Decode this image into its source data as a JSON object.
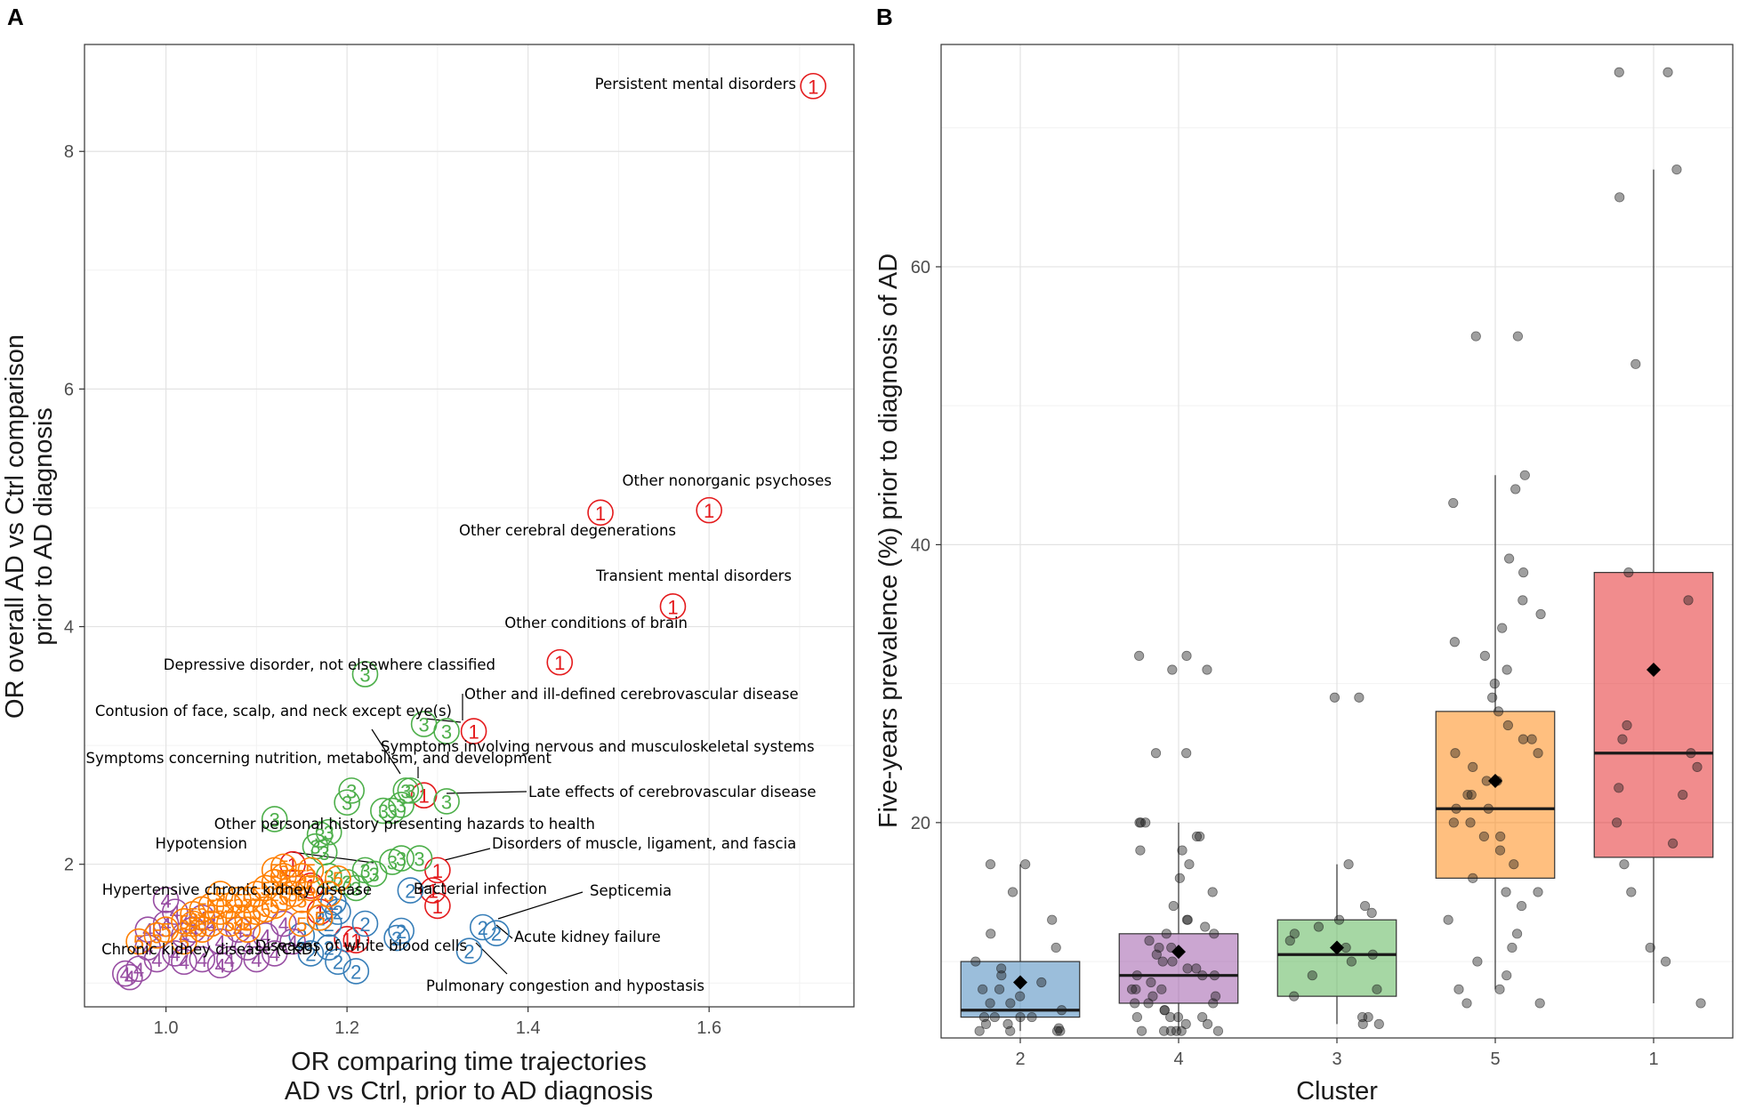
{
  "colors": {
    "1": "#e41a1c",
    "2": "#377eb8",
    "3": "#4daf4a",
    "4": "#984ea3",
    "5": "#ff7f00"
  },
  "panelA": {
    "label": "A",
    "xlabel": [
      "OR comparing time trajectories",
      "AD vs Ctrl, prior to AD diagnosis"
    ],
    "ylabel": [
      "OR overall AD vs Ctrl comparison",
      "prior to AD diagnosis"
    ],
    "xlim": [
      0.91,
      1.76
    ],
    "ylim": [
      0.8,
      8.9
    ],
    "xticks": [
      1.0,
      1.2,
      1.4,
      1.6
    ],
    "xtick_labels": [
      "1.0",
      "1.2",
      "1.4",
      "1.6"
    ],
    "yticks": [
      2,
      4,
      6,
      8
    ],
    "ytick_labels": [
      "2",
      "4",
      "6",
      "8"
    ]
  },
  "panelB": {
    "label": "B",
    "xlabel": "Cluster",
    "ylabel": "Five-years prevalence (%) prior to diagnosis of AD",
    "ylim": [
      4.5,
      76
    ],
    "yticks": [
      20,
      40,
      60
    ],
    "ytick_labels": [
      "20",
      "40",
      "60"
    ]
  },
  "chart_data": [
    {
      "type": "scatter",
      "title": "",
      "xlabel": "OR comparing time trajectories AD vs Ctrl, prior to AD diagnosis",
      "ylabel": "OR overall AD vs Ctrl comparison prior to AD diagnosis",
      "labeled_points": [
        {
          "name": "Persistent mental disorders",
          "cluster": "1",
          "x": 1.715,
          "y": 8.55
        },
        {
          "name": "Other nonorganic psychoses",
          "cluster": "1",
          "x": 1.6,
          "y": 4.98
        },
        {
          "name": "Other cerebral degenerations",
          "cluster": "1",
          "x": 1.48,
          "y": 4.96
        },
        {
          "name": "Transient mental disorders",
          "cluster": "1",
          "x": 1.56,
          "y": 4.17
        },
        {
          "name": "Other conditions of brain",
          "cluster": "1",
          "x": 1.435,
          "y": 3.7
        },
        {
          "name": "Depressive disorder, not elsewhere classified",
          "cluster": "3",
          "x": 1.22,
          "y": 3.6
        },
        {
          "name": "Other and ill-defined cerebrovascular disease",
          "cluster": "1",
          "x": 1.34,
          "y": 3.12
        },
        {
          "name": "Contusion of face, scalp, and neck except eye(s)",
          "cluster": "3",
          "x": 1.29,
          "y": 3.1
        },
        {
          "name": "Symptoms involving nervous and musculoskeletal systems",
          "cluster": "3",
          "x": 1.265,
          "y": 2.62
        },
        {
          "name": "Symptoms concerning nutrition, metabolism, and development",
          "cluster": "1",
          "x": 1.285,
          "y": 2.58
        },
        {
          "name": "Late effects of cerebrovascular disease",
          "cluster": "3",
          "x": 1.31,
          "y": 2.53
        },
        {
          "name": "Other personal history presenting hazards to health",
          "cluster": "3",
          "x": 1.215,
          "y": 1.95
        },
        {
          "name": "Hypotension",
          "cluster": "5",
          "x": 1.19,
          "y": 1.88
        },
        {
          "name": "Disorders of muscle, ligament, and fascia",
          "cluster": "1",
          "x": 1.3,
          "y": 1.95
        },
        {
          "name": "Bacterial infection",
          "cluster": "1",
          "x": 1.295,
          "y": 1.78
        },
        {
          "name": "Septicemia",
          "cluster": "2",
          "x": 1.365,
          "y": 1.42
        },
        {
          "name": "Hypertensive chronic kidney disease",
          "cluster": "5",
          "x": 1.15,
          "y": 1.5
        },
        {
          "name": "Acute kidney failure",
          "cluster": "2",
          "x": 1.36,
          "y": 1.35
        },
        {
          "name": "Diseases of white blood cells",
          "cluster": "2",
          "x": 1.19,
          "y": 1.18
        },
        {
          "name": "Chronic kidney disease (CKD)",
          "cluster": "4",
          "x": 0.97,
          "y": 1.12
        },
        {
          "name": "Pulmonary congestion and hypostasis",
          "cluster": "2",
          "x": 1.335,
          "y": 1.27
        }
      ],
      "series": [
        {
          "name": "1",
          "points": [
            [
              1.715,
              8.55
            ],
            [
              1.6,
              4.98
            ],
            [
              1.48,
              4.96
            ],
            [
              1.56,
              4.17
            ],
            [
              1.435,
              3.7
            ],
            [
              1.34,
              3.12
            ],
            [
              1.285,
              2.58
            ],
            [
              1.3,
              1.95
            ],
            [
              1.295,
              1.78
            ],
            [
              1.3,
              1.65
            ],
            [
              1.14,
              2.0
            ],
            [
              1.16,
              1.82
            ],
            [
              1.17,
              1.6
            ],
            [
              1.2,
              1.37
            ],
            [
              1.21,
              1.36
            ]
          ]
        },
        {
          "name": "2",
          "points": [
            [
              1.365,
              1.42
            ],
            [
              1.35,
              1.47
            ],
            [
              1.335,
              1.27
            ],
            [
              1.26,
              1.44
            ],
            [
              1.255,
              1.38
            ],
            [
              1.27,
              1.78
            ],
            [
              1.22,
              1.5
            ],
            [
              1.21,
              1.1
            ],
            [
              1.19,
              1.18
            ],
            [
              1.18,
              1.3
            ],
            [
              1.16,
              1.25
            ],
            [
              1.15,
              1.4
            ],
            [
              1.17,
              1.55
            ],
            [
              1.18,
              1.5
            ],
            [
              1.185,
              1.68
            ],
            [
              1.19,
              1.6
            ]
          ]
        },
        {
          "name": "3",
          "points": [
            [
              1.22,
              3.6
            ],
            [
              1.285,
              3.18
            ],
            [
              1.31,
              3.12
            ],
            [
              1.265,
              2.62
            ],
            [
              1.27,
              2.62
            ],
            [
              1.31,
              2.53
            ],
            [
              1.24,
              2.45
            ],
            [
              1.25,
              2.45
            ],
            [
              1.26,
              2.5
            ],
            [
              1.2,
              2.52
            ],
            [
              1.205,
              2.62
            ],
            [
              1.12,
              2.38
            ],
            [
              1.18,
              2.27
            ],
            [
              1.17,
              2.25
            ],
            [
              1.175,
              2.1
            ],
            [
              1.165,
              2.15
            ],
            [
              1.22,
              1.95
            ],
            [
              1.23,
              1.92
            ],
            [
              1.25,
              2.02
            ],
            [
              1.26,
              2.05
            ],
            [
              1.28,
              2.05
            ],
            [
              1.21,
              1.8
            ],
            [
              1.2,
              1.85
            ],
            [
              1.18,
              1.9
            ]
          ]
        },
        {
          "name": "4",
          "points": [
            [
              0.97,
              1.12
            ],
            [
              0.96,
              1.05
            ],
            [
              0.955,
              1.08
            ],
            [
              1.0,
              1.7
            ],
            [
              0.98,
              1.3
            ],
            [
              0.99,
              1.2
            ],
            [
              1.01,
              1.25
            ],
            [
              1.02,
              1.4
            ],
            [
              1.03,
              1.45
            ],
            [
              1.04,
              1.2
            ],
            [
              1.05,
              1.5
            ],
            [
              1.06,
              1.35
            ],
            [
              1.07,
              1.2
            ],
            [
              1.08,
              1.45
            ],
            [
              1.09,
              1.3
            ],
            [
              1.1,
              1.2
            ],
            [
              1.11,
              1.4
            ],
            [
              1.12,
              1.25
            ],
            [
              1.13,
              1.5
            ],
            [
              1.14,
              1.35
            ],
            [
              1.0,
              1.5
            ],
            [
              1.01,
              1.6
            ],
            [
              0.98,
              1.45
            ],
            [
              1.02,
              1.18
            ],
            [
              1.04,
              1.55
            ],
            [
              1.06,
              1.15
            ]
          ]
        },
        {
          "name": "5",
          "points": [
            [
              0.97,
              1.35
            ],
            [
              0.99,
              1.4
            ],
            [
              1.0,
              1.45
            ],
            [
              1.02,
              1.35
            ],
            [
              1.03,
              1.5
            ],
            [
              1.04,
              1.45
            ],
            [
              1.05,
              1.5
            ],
            [
              1.06,
              1.6
            ],
            [
              1.07,
              1.65
            ],
            [
              1.08,
              1.55
            ],
            [
              1.09,
              1.7
            ],
            [
              1.1,
              1.75
            ],
            [
              1.11,
              1.8
            ],
            [
              1.12,
              1.85
            ],
            [
              1.13,
              1.9
            ],
            [
              1.14,
              1.75
            ],
            [
              1.15,
              1.7
            ],
            [
              1.16,
              1.8
            ],
            [
              1.19,
              1.88
            ],
            [
              1.15,
              1.5
            ],
            [
              1.17,
              1.55
            ],
            [
              1.1,
              1.6
            ],
            [
              1.08,
              1.7
            ],
            [
              1.12,
              1.65
            ],
            [
              1.13,
              1.72
            ],
            [
              1.14,
              1.85
            ],
            [
              1.16,
              1.95
            ],
            [
              1.06,
              1.75
            ],
            [
              1.07,
              1.5
            ],
            [
              1.09,
              1.55
            ],
            [
              1.11,
              1.62
            ],
            [
              1.05,
              1.65
            ],
            [
              1.04,
              1.62
            ],
            [
              1.03,
              1.58
            ],
            [
              1.02,
              1.52
            ],
            [
              1.12,
              1.95
            ],
            [
              1.13,
              1.98
            ],
            [
              1.15,
              1.9
            ],
            [
              1.18,
              1.75
            ],
            [
              1.09,
              1.45
            ]
          ]
        }
      ]
    },
    {
      "type": "box",
      "title": "",
      "xlabel": "Cluster",
      "ylabel": "Five-years prevalence (%) prior to diagnosis of AD",
      "categories": [
        "2",
        "4",
        "3",
        "5",
        "1"
      ],
      "boxes": [
        {
          "cluster": "2",
          "q1": 6.0,
          "median": 6.5,
          "q3": 10.0,
          "whisker_low": 5.0,
          "whisker_high": 17.0,
          "mean": 8.5,
          "points": [
            5,
            5,
            5,
            5,
            5.2,
            5.5,
            5.5,
            6,
            6,
            6,
            6,
            6.5,
            7,
            7,
            7.5,
            8,
            8,
            8.5,
            9,
            9.5,
            10,
            11,
            12,
            13,
            15,
            17,
            17
          ]
        },
        {
          "cluster": "4",
          "q1": 7.0,
          "median": 9.0,
          "q3": 12.0,
          "whisker_low": 5.0,
          "whisker_high": 20.0,
          "mean": 10.7,
          "points": [
            5,
            5,
            5,
            5,
            5,
            5,
            5.5,
            5.5,
            6,
            6,
            6,
            6,
            6.5,
            6.5,
            7,
            7,
            7,
            7.5,
            7.5,
            8,
            8,
            8,
            8.5,
            9,
            9,
            9,
            9.5,
            9.5,
            10,
            10,
            10.5,
            11,
            11,
            11.5,
            12,
            12,
            12.5,
            13,
            13,
            14,
            15,
            16,
            17,
            18,
            18,
            19,
            19,
            20,
            20,
            20,
            25,
            25,
            31,
            31,
            32,
            32
          ]
        },
        {
          "cluster": "3",
          "q1": 7.5,
          "median": 10.5,
          "q3": 13.0,
          "whisker_low": 5.5,
          "whisker_high": 17.0,
          "mean": 11.0,
          "points": [
            5.5,
            5.5,
            6,
            6,
            7.5,
            8,
            9,
            10,
            10.5,
            11,
            11.5,
            12,
            12.5,
            13,
            13.5,
            14,
            17,
            29,
            29
          ]
        },
        {
          "cluster": "5",
          "q1": 16.0,
          "median": 21.0,
          "q3": 28.0,
          "whisker_low": 8.0,
          "whisker_high": 45.0,
          "mean": 23.0,
          "points": [
            7,
            7,
            8,
            8,
            9,
            10,
            11,
            12,
            13,
            14,
            15,
            15,
            16,
            17,
            18,
            19,
            19,
            20,
            20,
            21,
            21,
            22,
            22,
            23,
            23,
            24,
            25,
            25,
            26,
            26,
            27,
            28,
            29,
            30,
            31,
            32,
            33,
            34,
            35,
            36,
            38,
            39,
            43,
            44,
            45,
            55,
            55
          ]
        },
        {
          "cluster": "1",
          "q1": 17.5,
          "median": 25.0,
          "q3": 38.0,
          "whisker_low": 7.0,
          "whisker_high": 67.0,
          "mean": 31.0,
          "points": [
            7,
            10,
            11,
            15,
            17,
            18.5,
            20,
            22,
            22.5,
            24,
            25,
            26,
            27,
            36,
            38,
            53,
            65,
            67,
            74,
            74
          ]
        }
      ]
    }
  ]
}
